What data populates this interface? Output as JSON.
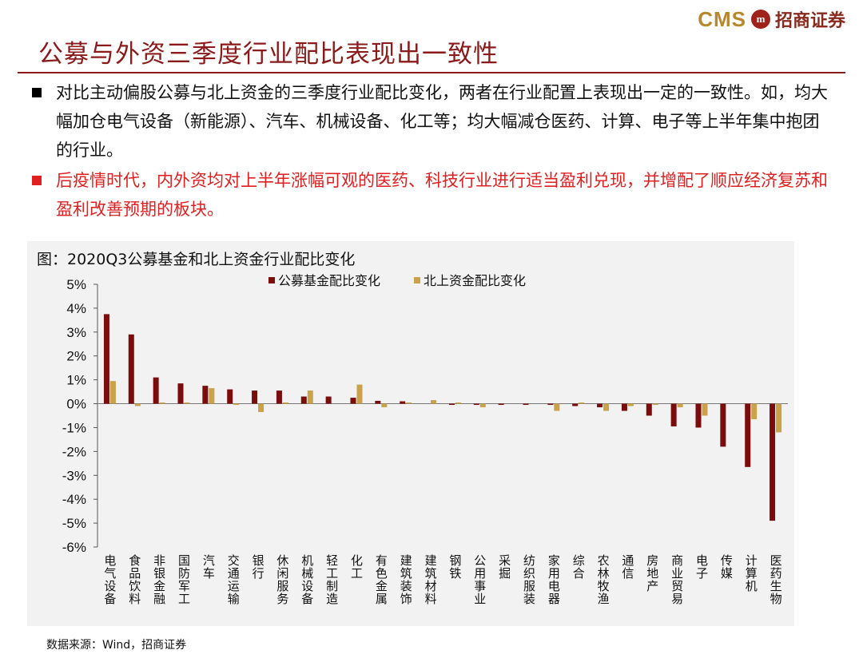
{
  "brand": {
    "logo_text": "CMS",
    "logo_badge": "m",
    "logo_cn": "招商证券"
  },
  "page": {
    "title": "公募与外资三季度行业配比表现出一致性",
    "bullets": [
      "对比主动偏股公募与北上资金的三季度行业配比变化，两者在行业配置上表现出一定的一致性。如，均大幅加仓电气设备（新能源）、汽车、机械设备、化工等；均大幅减仓医药、计算、电子等上半年集中抱团的行业。",
      "后疫情时代，内外资均对上半年涨幅可观的医药、科技行业进行适当盈利兑现，并增配了顺应经济复苏和盈利改善预期的板块。"
    ],
    "source": "数据来源：Wind，招商证券"
  },
  "colors": {
    "series1": "#7a0c0c",
    "series2": "#c9a24a",
    "title": "#8b1a1a",
    "red_text": "#e02020"
  },
  "chart_data": {
    "type": "bar",
    "title": "图：2020Q3公募基金和北上资金行业配比变化",
    "categories": [
      "电气设备",
      "食品饮料",
      "非银金融",
      "国防军工",
      "汽车",
      "交通运输",
      "银行",
      "休闲服务",
      "机械设备",
      "轻工制造",
      "化工",
      "有色金属",
      "建筑装饰",
      "建筑材料",
      "钢铁",
      "公用事业",
      "采掘",
      "纺织服装",
      "家用电器",
      "综合",
      "农林牧渔",
      "通信",
      "房地产",
      "商业贸易",
      "电子",
      "传媒",
      "计算机",
      "医药生物"
    ],
    "series": [
      {
        "name": "公募基金配比变化",
        "values": [
          3.75,
          2.9,
          1.1,
          0.85,
          0.75,
          0.6,
          0.55,
          0.55,
          0.3,
          0.3,
          0.25,
          0.12,
          0.1,
          0.0,
          -0.05,
          -0.05,
          -0.05,
          -0.05,
          -0.05,
          -0.1,
          -0.15,
          -0.3,
          -0.5,
          -0.95,
          -1.0,
          -1.8,
          -2.65,
          -4.9
        ]
      },
      {
        "name": "北上资金配比变化",
        "values": [
          0.95,
          -0.1,
          0.05,
          0.05,
          0.65,
          -0.05,
          -0.35,
          0.05,
          0.55,
          0.0,
          0.8,
          -0.15,
          0.05,
          0.15,
          0.05,
          -0.15,
          0.0,
          0.0,
          -0.3,
          0.05,
          -0.3,
          -0.1,
          -0.05,
          -0.15,
          -0.5,
          0.0,
          -0.65,
          -1.2
        ]
      }
    ],
    "ylim": [
      -6,
      5
    ],
    "yticks": [
      "5%",
      "4%",
      "3%",
      "2%",
      "1%",
      "0%",
      "-1%",
      "-2%",
      "-3%",
      "-4%",
      "-5%",
      "-6%"
    ],
    "legend_position": "top",
    "grid": false
  }
}
